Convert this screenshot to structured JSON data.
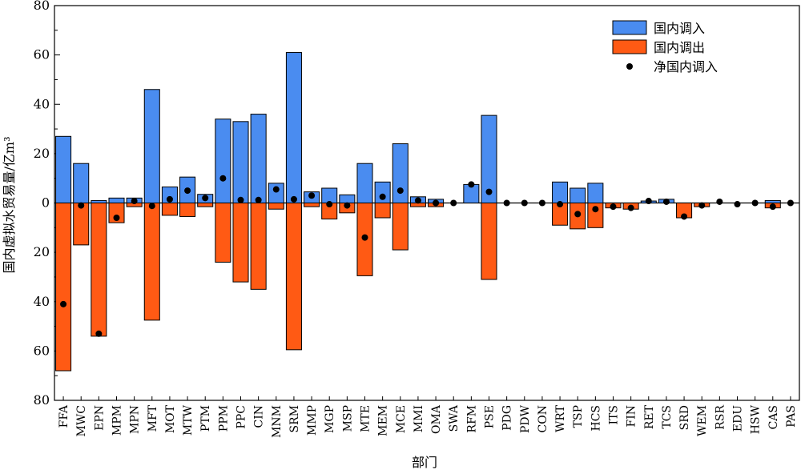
{
  "chart_data": {
    "type": "bar",
    "xlabel": "部门",
    "ylabel": "国内虚拟水贸易量/亿m³",
    "ylim": [
      -80,
      80
    ],
    "y_ticks": [
      -80,
      -60,
      -40,
      -20,
      0,
      20,
      40,
      60,
      80
    ],
    "y_tick_labels": [
      "80",
      "60",
      "40",
      "20",
      "0",
      "20",
      "40",
      "60",
      "80"
    ],
    "legend_position": "top-right",
    "categories": [
      "FFA",
      "MWC",
      "EPN",
      "MPM",
      "MPN",
      "MFT",
      "MOT",
      "MTW",
      "PTM",
      "PPM",
      "PPC",
      "CIN",
      "MNM",
      "SRM",
      "MMP",
      "MGP",
      "MSP",
      "MTE",
      "MEM",
      "MCE",
      "MMI",
      "OMA",
      "SWA",
      "RFM",
      "PSE",
      "PDG",
      "PDW",
      "CON",
      "WRT",
      "TSP",
      "HCS",
      "ITS",
      "FIN",
      "RET",
      "TCS",
      "SRD",
      "WEM",
      "RSR",
      "EDU",
      "HSW",
      "CAS",
      "PAS"
    ],
    "series": [
      {
        "name": "国内调入",
        "type": "bar",
        "color": "#4a8cf0",
        "values": [
          27,
          16,
          1,
          2,
          2,
          46,
          6.5,
          10.5,
          3.5,
          34,
          33,
          36,
          8,
          61,
          4.5,
          6,
          3.3,
          16,
          8.5,
          24,
          2.5,
          1.5,
          0,
          7.5,
          35.5,
          0,
          0,
          0,
          8.5,
          6,
          8,
          0,
          0,
          0.8,
          1.5,
          0,
          0,
          0,
          0,
          0,
          1,
          0
        ]
      },
      {
        "name": "国内调出",
        "type": "bar",
        "color": "#ff5a14",
        "values": [
          -68,
          -17,
          -54,
          -8,
          -1.5,
          -47.5,
          -5,
          -5.5,
          -1.5,
          -24,
          -32,
          -35,
          -2.5,
          -59.5,
          -1.5,
          -6.5,
          -4,
          -29.5,
          -6,
          -19,
          -1.5,
          -1.5,
          0,
          0,
          -31,
          0,
          0,
          0,
          -9,
          -10.5,
          -10,
          -2,
          -2.5,
          0,
          0,
          -6,
          -1.5,
          0,
          0,
          0,
          -2,
          0
        ]
      },
      {
        "name": "净国内调入",
        "type": "scatter",
        "color": "#000000",
        "values": [
          -41,
          -1,
          -53,
          -6,
          0.8,
          -1.2,
          1.5,
          5,
          2,
          10,
          1.2,
          1.2,
          5.5,
          1.5,
          3,
          -0.5,
          -1,
          -14,
          2.5,
          5,
          1,
          0,
          0,
          7.5,
          4.5,
          0,
          0,
          0,
          -0.5,
          -4.5,
          -2.5,
          -1.5,
          -2,
          0.8,
          0.5,
          -5.5,
          -1,
          0.5,
          -0.5,
          0,
          -1.5,
          0
        ]
      }
    ]
  }
}
